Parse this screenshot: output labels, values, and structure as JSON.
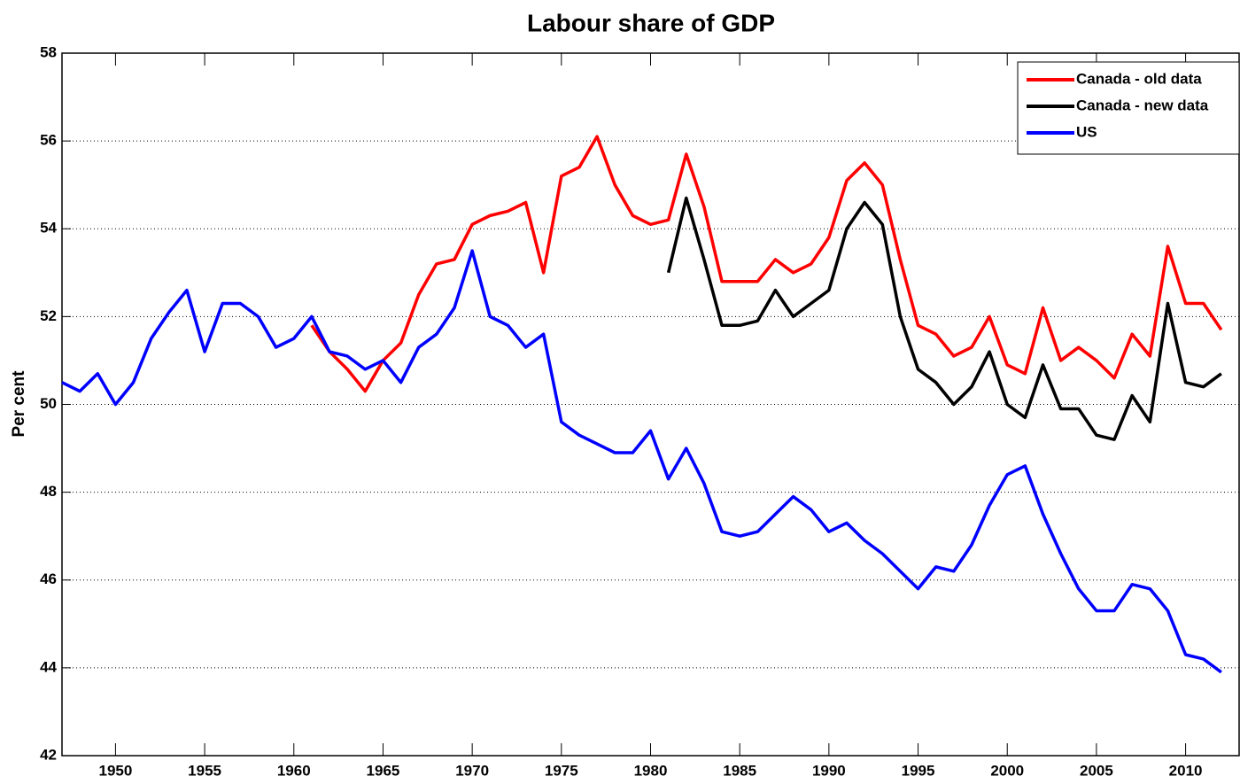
{
  "chart_data": {
    "type": "line",
    "title": "Labour share of GDP",
    "ylabel": "Per cent",
    "x": [
      1947,
      1948,
      1949,
      1950,
      1951,
      1952,
      1953,
      1954,
      1955,
      1956,
      1957,
      1958,
      1959,
      1960,
      1961,
      1962,
      1963,
      1964,
      1965,
      1966,
      1967,
      1968,
      1969,
      1970,
      1971,
      1972,
      1973,
      1974,
      1975,
      1976,
      1977,
      1978,
      1979,
      1980,
      1981,
      1982,
      1983,
      1984,
      1985,
      1986,
      1987,
      1988,
      1989,
      1990,
      1991,
      1992,
      1993,
      1994,
      1995,
      1996,
      1997,
      1998,
      1999,
      2000,
      2001,
      2002,
      2003,
      2004,
      2005,
      2006,
      2007,
      2008,
      2009,
      2010,
      2011,
      2012
    ],
    "series": [
      {
        "name": "Canada - old data",
        "color": "#ff0000",
        "values": [
          null,
          null,
          null,
          null,
          null,
          null,
          null,
          null,
          null,
          null,
          null,
          null,
          null,
          null,
          51.8,
          51.2,
          50.8,
          50.3,
          51.0,
          51.4,
          52.5,
          53.2,
          53.3,
          54.1,
          54.3,
          54.4,
          54.6,
          53.0,
          55.2,
          55.4,
          56.1,
          55.0,
          54.3,
          54.1,
          54.2,
          55.7,
          54.5,
          52.8,
          52.8,
          52.8,
          53.3,
          53.0,
          53.2,
          53.8,
          55.1,
          55.5,
          55.0,
          53.3,
          51.8,
          51.6,
          51.1,
          51.3,
          52.0,
          50.9,
          50.7,
          52.2,
          51.0,
          51.3,
          51.0,
          50.6,
          51.6,
          51.1,
          53.6,
          52.3,
          52.3,
          51.7
        ]
      },
      {
        "name": "Canada - new data",
        "color": "#000000",
        "values": [
          null,
          null,
          null,
          null,
          null,
          null,
          null,
          null,
          null,
          null,
          null,
          null,
          null,
          null,
          null,
          null,
          null,
          null,
          null,
          null,
          null,
          null,
          null,
          null,
          null,
          null,
          null,
          null,
          null,
          null,
          null,
          null,
          null,
          null,
          53.0,
          54.7,
          53.3,
          51.8,
          51.8,
          51.9,
          52.6,
          52.0,
          52.3,
          52.6,
          54.0,
          54.6,
          54.1,
          52.0,
          50.8,
          50.5,
          50.0,
          50.4,
          51.2,
          50.0,
          49.7,
          50.9,
          49.9,
          49.9,
          49.3,
          49.2,
          50.2,
          49.6,
          52.3,
          50.5,
          50.4,
          50.7
        ]
      },
      {
        "name": "US",
        "color": "#0000ff",
        "values": [
          50.5,
          50.3,
          50.7,
          50.0,
          50.5,
          51.5,
          52.1,
          52.6,
          51.2,
          52.3,
          52.3,
          52.0,
          51.3,
          51.5,
          52.0,
          51.2,
          51.1,
          50.8,
          51.0,
          50.5,
          51.3,
          51.6,
          52.2,
          53.5,
          52.0,
          51.8,
          51.3,
          51.6,
          49.6,
          49.3,
          49.1,
          48.9,
          48.9,
          49.4,
          48.3,
          49.0,
          48.2,
          47.1,
          47.0,
          47.1,
          47.5,
          47.9,
          47.6,
          47.1,
          47.3,
          46.9,
          46.6,
          46.2,
          45.8,
          46.3,
          46.2,
          46.8,
          47.7,
          48.4,
          48.6,
          47.5,
          46.6,
          45.8,
          45.3,
          45.3,
          45.9,
          45.8,
          45.3,
          44.3,
          44.2,
          43.9
        ]
      }
    ],
    "xlim": [
      1947,
      2013
    ],
    "xticks": [
      1950,
      1955,
      1960,
      1965,
      1970,
      1975,
      1980,
      1985,
      1990,
      1995,
      2000,
      2005,
      2010
    ],
    "ylim": [
      42,
      58
    ],
    "yticks": [
      42,
      44,
      46,
      48,
      50,
      52,
      54,
      56,
      58
    ],
    "grid": true,
    "legend": "upper right"
  }
}
